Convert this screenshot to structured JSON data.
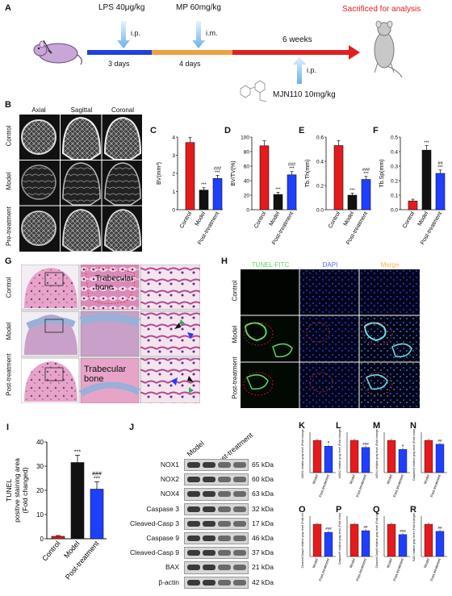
{
  "panelA": {
    "label": "A",
    "lps": "LPS 40μg/kg",
    "mp": "MP 60mg/kg",
    "ip1": "i.p.",
    "im": "i.m.",
    "days1": "3 days",
    "days2": "4 days",
    "weeks": "6 weeks",
    "ip2": "i.p.",
    "mjn": "MJN110 10mg/kg",
    "sacrificed": "Sacrificed for analysis"
  },
  "panelB": {
    "label": "B",
    "cols": [
      "Axial",
      "Sagittal",
      "Coronal"
    ],
    "rows": [
      "Control",
      "Model",
      "Pre-treatment"
    ]
  },
  "bars_small": [
    {
      "label": "C",
      "ylabel": "BV(mm³)",
      "ymax": 4,
      "ticks": [
        "0",
        "1",
        "2",
        "3",
        "4"
      ],
      "values": [
        3.7,
        1.08,
        1.72
      ],
      "sig": [
        "",
        "***",
        "###"
      ],
      "sig2": [
        "",
        "",
        "***"
      ]
    },
    {
      "label": "D",
      "ylabel": "BV/TV(%)",
      "ymax": 100,
      "ticks": [
        "0",
        "20",
        "40",
        "60",
        "80",
        "100"
      ],
      "values": [
        88,
        21,
        48
      ],
      "sig": [
        "",
        "***",
        "###"
      ],
      "sig2": [
        "",
        "",
        "***"
      ]
    },
    {
      "label": "E",
      "ylabel": "Tb.Th(mm)",
      "ymax": 0.6,
      "ticks": [
        "0.0",
        "0.2",
        "0.4",
        "0.6"
      ],
      "values": [
        0.53,
        0.12,
        0.25
      ],
      "sig": [
        "",
        "***",
        "###"
      ],
      "sig2": [
        "",
        "",
        "***"
      ]
    },
    {
      "label": "F",
      "ylabel": "Tb.Sp(mm)",
      "ymax": 0.5,
      "ticks": [
        "0.0",
        "0.1",
        "0.2",
        "0.3",
        "0.4",
        "0.5"
      ],
      "values": [
        0.06,
        0.41,
        0.25
      ],
      "sig": [
        "",
        "***",
        "##"
      ],
      "sig2": [
        "",
        "",
        "***"
      ]
    }
  ],
  "group_names": [
    "Control",
    "Model",
    "Post-treatment"
  ],
  "panelG": {
    "label": "G",
    "rows": [
      "Control",
      "Model",
      "Post-treatment"
    ],
    "annot1": "Trabecular bone",
    "annot2": "Trabecular bone"
  },
  "panelH": {
    "label": "H",
    "cols": [
      "TUNEL-FITC",
      "DAPI",
      "Merge"
    ],
    "rows": [
      "Control",
      "Model",
      "Post-treatment"
    ],
    "col_colors": [
      "#5fd35f",
      "#4a6cff",
      "#ffb347"
    ]
  },
  "panelI": {
    "label": "I",
    "ylabel1": "TUNEL",
    "ylabel2": "positive staining area",
    "ylabel3": "(Fold changed)",
    "ticks": [
      "0",
      "10",
      "20",
      "30",
      "40"
    ],
    "ymax": 40,
    "values": [
      1,
      31.5,
      20.5
    ],
    "sig": [
      "",
      "***",
      "###"
    ],
    "sig2": [
      "",
      "",
      "***"
    ]
  },
  "panelJ": {
    "label": "J",
    "header": [
      "Model",
      "Post-treatment"
    ],
    "proteins": [
      "NOX1",
      "NOX2",
      "NOX4",
      "Caspase 3",
      "Cleaved-Casp 3",
      "Caspase 9",
      "Cleaved-Casp 9",
      "BAX",
      "β-actin"
    ],
    "kda": [
      "65 kDa",
      "60 kDa",
      "63 kDa",
      "32 kDa",
      "17 kDa",
      "46 kDa",
      "37 kDa",
      "21 kDa",
      "42 kDa"
    ]
  },
  "mini_bars": [
    {
      "label": "K",
      "ylabel": "NOX1 relative gray level (Fold changed)",
      "values": [
        1.0,
        0.82
      ],
      "sig": "#"
    },
    {
      "label": "L",
      "ylabel": "NOX2 relative gray level (Fold changed)",
      "values": [
        1.0,
        0.78
      ],
      "sig": "###"
    },
    {
      "label": "M",
      "ylabel": "NOX4 relative gray level (Fold changed)",
      "values": [
        1.0,
        0.72
      ],
      "sig": "#"
    },
    {
      "label": "N",
      "ylabel": "Caspase3 relative gray level (Fold changed)",
      "values": [
        1.0,
        0.88
      ],
      "sig": "##"
    },
    {
      "label": "O",
      "ylabel": "Cleaved Casp3 relative gray level (Fold changed)",
      "values": [
        1.0,
        0.75
      ],
      "sig": "###"
    },
    {
      "label": "P",
      "ylabel": "Caspase9 relative gray level (Fold changed)",
      "values": [
        1.0,
        0.8
      ],
      "sig": "##"
    },
    {
      "label": "Q",
      "ylabel": "Cleaved Casp9 relative gray level (Fold changed)",
      "values": [
        1.0,
        0.68
      ],
      "sig": "###"
    },
    {
      "label": "R",
      "ylabel": "BAX relative gray level (Fold changed)",
      "values": [
        1.0,
        0.78
      ],
      "sig": "##"
    }
  ],
  "mini_groups": [
    "Model",
    "Post-treatment"
  ],
  "colors": {
    "control": "#e41a1c",
    "model": "#111111",
    "treat": "#1f3fff",
    "timeline_blue": "#2040e0",
    "timeline_orange": "#f0a040",
    "timeline_red": "#e02020"
  }
}
